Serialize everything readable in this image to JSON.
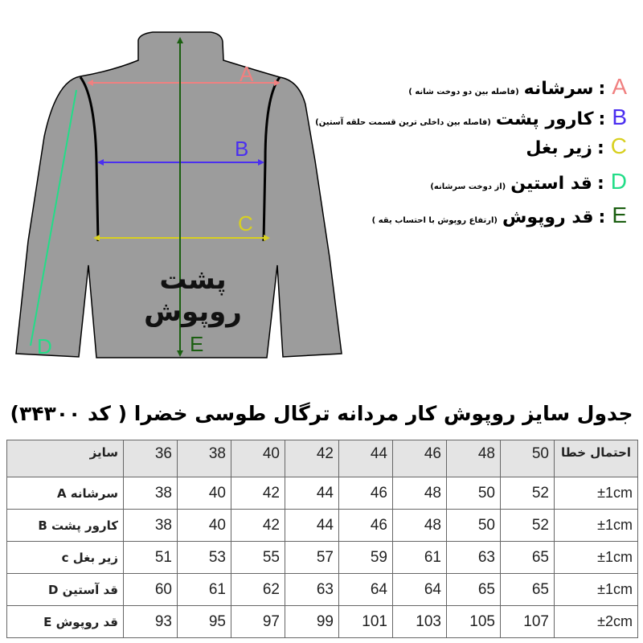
{
  "diagram": {
    "back_label": "پشت روپوش",
    "arrow_letters": {
      "A": "A",
      "B": "B",
      "C": "C",
      "D": "D",
      "E": "E"
    },
    "colors": {
      "A": "#f08080",
      "B": "#4b2ff0",
      "C": "#d8d020",
      "D": "#22dd88",
      "E": "#1a5e10",
      "jacket": "#9c9c9c"
    }
  },
  "legend": [
    {
      "letter": "A",
      "name": "سرشانه",
      "note": "(فاصله بین دو دوخت شانه )",
      "color": "#f08080"
    },
    {
      "letter": "B",
      "name": "کارور پشت",
      "note": "(فاصله بین داخلی ترین قسمت حلقه آستین)",
      "color": "#4b2ff0"
    },
    {
      "letter": "C",
      "name": "زیر بغل",
      "note": "",
      "color": "#d8d020"
    },
    {
      "letter": "D",
      "name": "قد استین",
      "note": "(از دوخت سرشانه)",
      "color": "#22dd88"
    },
    {
      "letter": "E",
      "name": "قد روپوش",
      "note": "(ارتفاع روپوش با احتساب یقه )",
      "color": "#1a5e10"
    }
  ],
  "table": {
    "title": "جدول سایز روپوش کار مردانه ترگال طوسی خضرا ( کد ۳۴۳۰۰)",
    "header": {
      "label": "سایز",
      "sizes": [
        "36",
        "38",
        "40",
        "42",
        "44",
        "46",
        "48",
        "50"
      ],
      "tolerance": "احتمال خطا"
    },
    "rows": [
      {
        "label": "سرشانه  A",
        "values": [
          "38",
          "40",
          "42",
          "44",
          "46",
          "48",
          "50",
          "52"
        ],
        "tolerance": "±1cm"
      },
      {
        "label": "کارور پشت B",
        "values": [
          "38",
          "40",
          "42",
          "44",
          "46",
          "48",
          "50",
          "52"
        ],
        "tolerance": "±1cm"
      },
      {
        "label": "زیر بغل c",
        "values": [
          "51",
          "53",
          "55",
          "57",
          "59",
          "61",
          "63",
          "65"
        ],
        "tolerance": "±1cm"
      },
      {
        "label": "قد آستین  D",
        "values": [
          "60",
          "61",
          "62",
          "63",
          "64",
          "64",
          "65",
          "65"
        ],
        "tolerance": "±1cm"
      },
      {
        "label": "قد روپوش E",
        "values": [
          "93",
          "95",
          "97",
          "99",
          "101",
          "103",
          "105",
          "107"
        ],
        "tolerance": "±2cm"
      }
    ]
  }
}
